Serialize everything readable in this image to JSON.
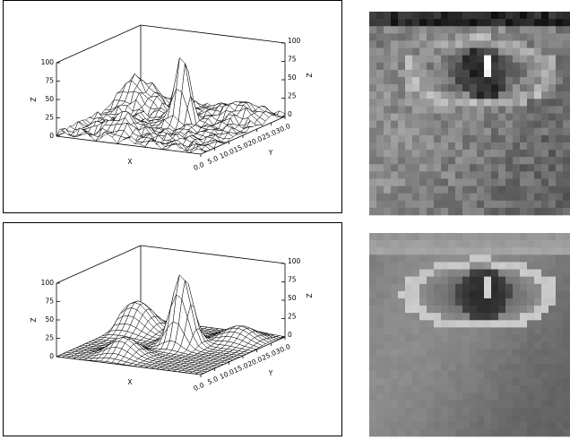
{
  "plots": [
    {
      "z_label": "Z",
      "x_label": "X",
      "y_label": "Y",
      "z_ticks": [
        "0",
        "25",
        "50",
        "75",
        "100"
      ],
      "y_ticks": [
        "0.0",
        "5.0",
        "10.0",
        "15.0",
        "20.0",
        "25.0",
        "30.0"
      ]
    },
    {
      "z_label": "Z",
      "x_label": "X",
      "y_label": "Y",
      "z_ticks": [
        "0",
        "25",
        "50",
        "75",
        "100"
      ],
      "y_ticks": [
        "0.0",
        "5.0",
        "10.0",
        "15.0",
        "20.0",
        "25.0",
        "30.0"
      ]
    }
  ]
}
